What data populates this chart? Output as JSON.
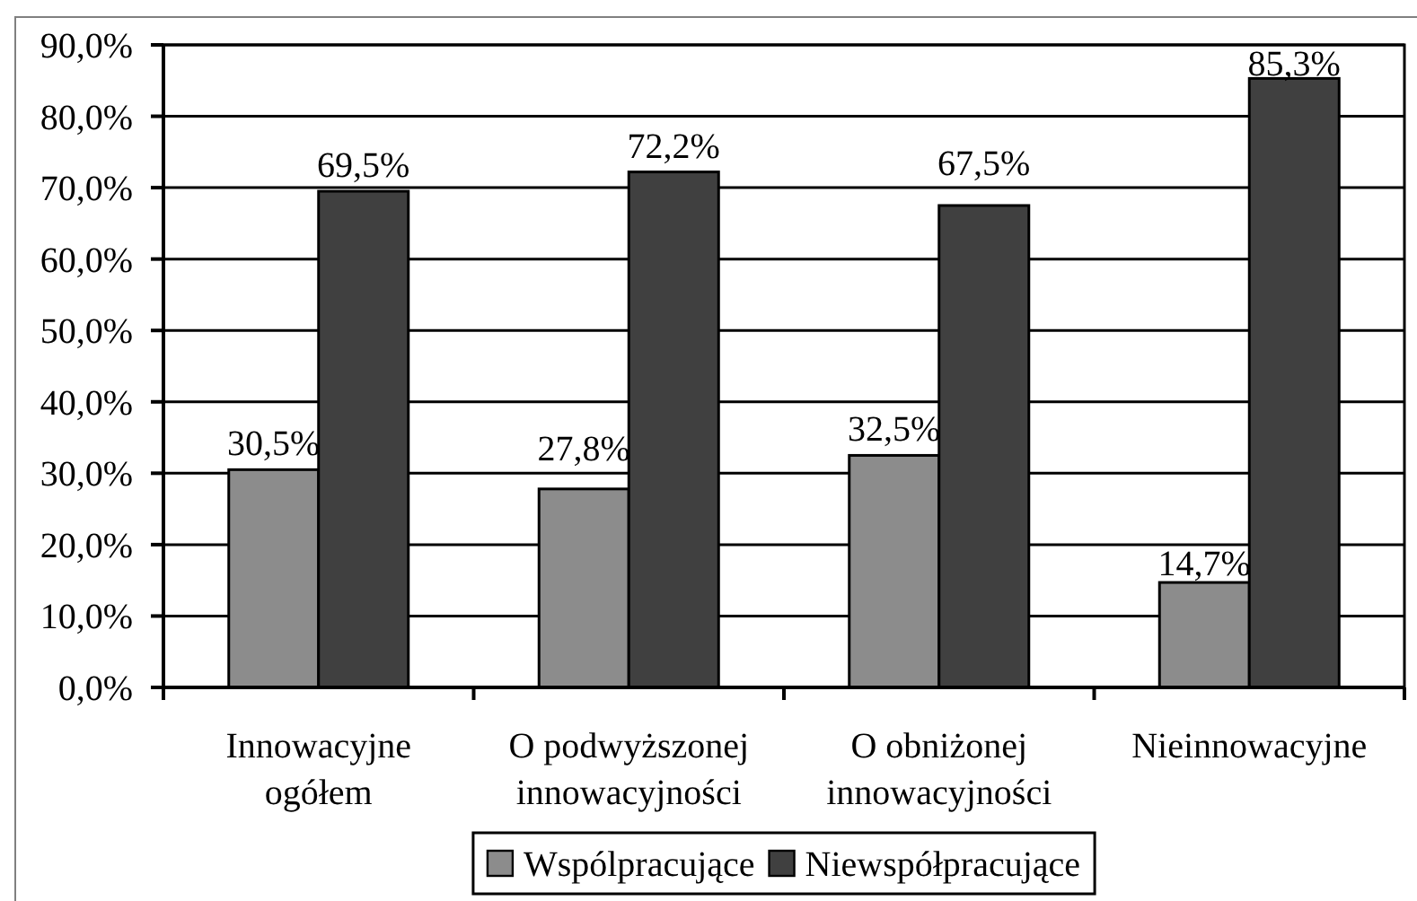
{
  "chart_data": {
    "type": "bar",
    "categories": [
      "Innowacyjne ogółem",
      "O podwyższonej innowacyjności",
      "O obniżonej innowacyjności",
      "Nieinnowacyjne"
    ],
    "series": [
      {
        "name": "Wspólpracujące",
        "color": "#8c8c8c",
        "values": [
          30.5,
          27.8,
          32.5,
          14.7
        ],
        "value_labels": [
          "30,5%",
          "27,8%",
          "32,5%",
          "14,7%"
        ]
      },
      {
        "name": "Niewspółpracujące",
        "color": "#404040",
        "values": [
          69.5,
          72.2,
          67.5,
          85.3
        ],
        "value_labels": [
          "69,5%",
          "72,2%",
          "67,5%",
          "85,3%"
        ]
      }
    ],
    "ylim": [
      0,
      90
    ],
    "yticks": [
      {
        "value": 0,
        "label": "0,0%"
      },
      {
        "value": 10,
        "label": "10,0%"
      },
      {
        "value": 20,
        "label": "20,0%"
      },
      {
        "value": 30,
        "label": "30,0%"
      },
      {
        "value": 40,
        "label": "40,0%"
      },
      {
        "value": 50,
        "label": "50,0%"
      },
      {
        "value": 60,
        "label": "60,0%"
      },
      {
        "value": 70,
        "label": "70,0%"
      },
      {
        "value": 80,
        "label": "80,0%"
      },
      {
        "value": 90,
        "label": "90,0%"
      }
    ],
    "grid": "y",
    "legend": "bottom"
  }
}
